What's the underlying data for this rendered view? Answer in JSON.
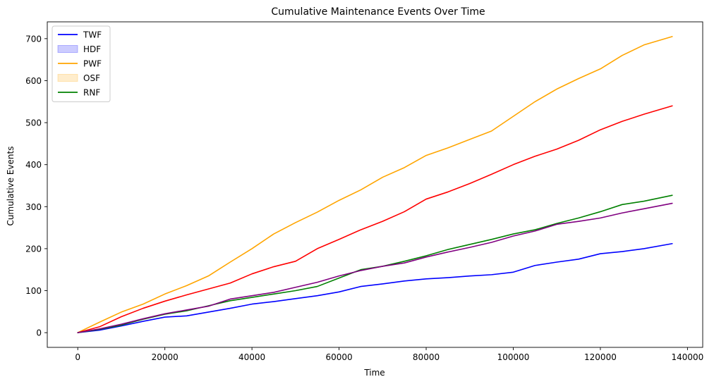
{
  "chart_data": {
    "type": "line",
    "title": "Cumulative Maintenance Events Over Time",
    "xlabel": "Time",
    "ylabel": "Cumulative Events",
    "xlim": [
      -7000,
      143500
    ],
    "ylim": [
      -35,
      740
    ],
    "xticks": [
      0,
      20000,
      40000,
      60000,
      80000,
      100000,
      120000,
      140000
    ],
    "yticks": [
      0,
      100,
      200,
      300,
      400,
      500,
      600,
      700
    ],
    "grid": false,
    "legend_position": "top-left",
    "legend": [
      {
        "label": "TWF",
        "kind": "line",
        "color": "#0000ff"
      },
      {
        "label": "HDF",
        "kind": "patch",
        "color": "#0000ff"
      },
      {
        "label": "PWF",
        "kind": "line",
        "color": "#ffa500"
      },
      {
        "label": "OSF",
        "kind": "patch",
        "color": "#ffa500"
      },
      {
        "label": "RNF",
        "kind": "line",
        "color": "#008000"
      }
    ],
    "series": [
      {
        "color": "#0000ff",
        "points": [
          [
            0,
            0
          ],
          [
            5000,
            6
          ],
          [
            10000,
            16
          ],
          [
            15000,
            27
          ],
          [
            20000,
            37
          ],
          [
            25000,
            40
          ],
          [
            30000,
            49
          ],
          [
            35000,
            58
          ],
          [
            40000,
            68
          ],
          [
            45000,
            74
          ],
          [
            50000,
            81
          ],
          [
            55000,
            88
          ],
          [
            60000,
            97
          ],
          [
            65000,
            110
          ],
          [
            70000,
            116
          ],
          [
            75000,
            123
          ],
          [
            80000,
            128
          ],
          [
            85000,
            131
          ],
          [
            90000,
            135
          ],
          [
            95000,
            138
          ],
          [
            100000,
            144
          ],
          [
            105000,
            160
          ],
          [
            110000,
            168
          ],
          [
            115000,
            175
          ],
          [
            120000,
            188
          ],
          [
            125000,
            193
          ],
          [
            130000,
            200
          ],
          [
            136500,
            212
          ]
        ]
      },
      {
        "color": "#ffa500",
        "points": [
          [
            0,
            0
          ],
          [
            5000,
            25
          ],
          [
            10000,
            49
          ],
          [
            15000,
            68
          ],
          [
            20000,
            92
          ],
          [
            25000,
            112
          ],
          [
            30000,
            135
          ],
          [
            35000,
            168
          ],
          [
            40000,
            200
          ],
          [
            45000,
            235
          ],
          [
            50000,
            262
          ],
          [
            55000,
            287
          ],
          [
            60000,
            315
          ],
          [
            65000,
            340
          ],
          [
            70000,
            370
          ],
          [
            75000,
            393
          ],
          [
            80000,
            422
          ],
          [
            85000,
            440
          ],
          [
            90000,
            460
          ],
          [
            95000,
            480
          ],
          [
            100000,
            515
          ],
          [
            105000,
            550
          ],
          [
            110000,
            580
          ],
          [
            115000,
            605
          ],
          [
            120000,
            628
          ],
          [
            125000,
            660
          ],
          [
            130000,
            685
          ],
          [
            136500,
            705
          ]
        ]
      },
      {
        "color": "#ff0000",
        "points": [
          [
            0,
            0
          ],
          [
            5000,
            14
          ],
          [
            10000,
            38
          ],
          [
            15000,
            58
          ],
          [
            20000,
            75
          ],
          [
            25000,
            90
          ],
          [
            30000,
            104
          ],
          [
            35000,
            118
          ],
          [
            40000,
            140
          ],
          [
            45000,
            157
          ],
          [
            50000,
            170
          ],
          [
            55000,
            200
          ],
          [
            60000,
            222
          ],
          [
            65000,
            245
          ],
          [
            70000,
            265
          ],
          [
            75000,
            288
          ],
          [
            80000,
            318
          ],
          [
            85000,
            335
          ],
          [
            90000,
            355
          ],
          [
            95000,
            377
          ],
          [
            100000,
            400
          ],
          [
            105000,
            420
          ],
          [
            110000,
            437
          ],
          [
            115000,
            458
          ],
          [
            120000,
            483
          ],
          [
            125000,
            503
          ],
          [
            130000,
            520
          ],
          [
            136500,
            540
          ]
        ]
      },
      {
        "color": "#008000",
        "points": [
          [
            0,
            0
          ],
          [
            5000,
            8
          ],
          [
            10000,
            18
          ],
          [
            15000,
            32
          ],
          [
            20000,
            44
          ],
          [
            25000,
            52
          ],
          [
            30000,
            64
          ],
          [
            35000,
            76
          ],
          [
            40000,
            84
          ],
          [
            45000,
            92
          ],
          [
            50000,
            100
          ],
          [
            55000,
            110
          ],
          [
            60000,
            130
          ],
          [
            65000,
            150
          ],
          [
            70000,
            158
          ],
          [
            75000,
            170
          ],
          [
            80000,
            183
          ],
          [
            85000,
            198
          ],
          [
            90000,
            210
          ],
          [
            95000,
            222
          ],
          [
            100000,
            235
          ],
          [
            105000,
            245
          ],
          [
            110000,
            260
          ],
          [
            115000,
            273
          ],
          [
            120000,
            288
          ],
          [
            125000,
            305
          ],
          [
            130000,
            313
          ],
          [
            136500,
            327
          ]
        ]
      },
      {
        "color": "#800080",
        "points": [
          [
            0,
            0
          ],
          [
            5000,
            9
          ],
          [
            10000,
            20
          ],
          [
            15000,
            33
          ],
          [
            20000,
            45
          ],
          [
            25000,
            54
          ],
          [
            30000,
            63
          ],
          [
            35000,
            80
          ],
          [
            40000,
            88
          ],
          [
            45000,
            96
          ],
          [
            50000,
            108
          ],
          [
            55000,
            120
          ],
          [
            60000,
            135
          ],
          [
            65000,
            148
          ],
          [
            70000,
            158
          ],
          [
            75000,
            166
          ],
          [
            80000,
            180
          ],
          [
            85000,
            192
          ],
          [
            90000,
            203
          ],
          [
            95000,
            215
          ],
          [
            100000,
            230
          ],
          [
            105000,
            242
          ],
          [
            110000,
            258
          ],
          [
            115000,
            265
          ],
          [
            120000,
            273
          ],
          [
            125000,
            285
          ],
          [
            130000,
            295
          ],
          [
            136500,
            308
          ]
        ]
      }
    ]
  }
}
